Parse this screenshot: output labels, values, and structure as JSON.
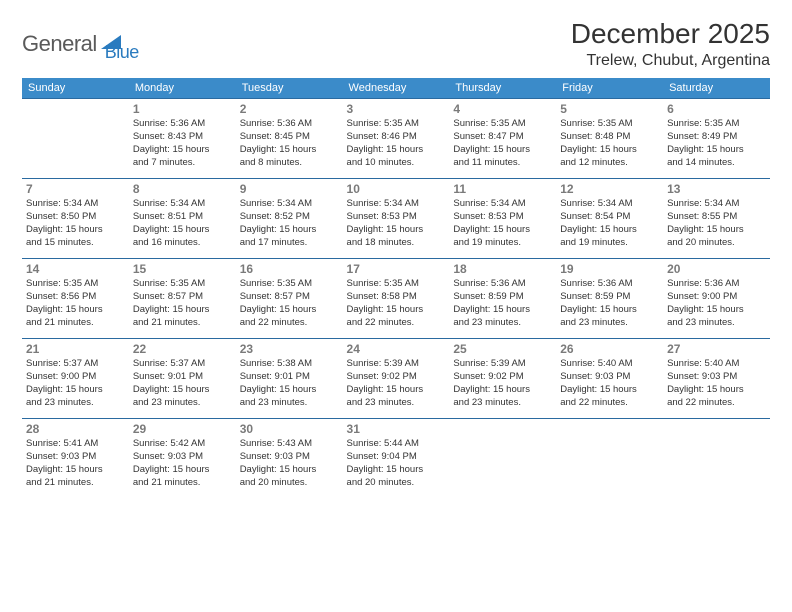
{
  "logo": {
    "text1": "General",
    "text2": "Blue"
  },
  "title": "December 2025",
  "location": "Trelew, Chubut, Argentina",
  "weekdays": [
    "Sunday",
    "Monday",
    "Tuesday",
    "Wednesday",
    "Thursday",
    "Friday",
    "Saturday"
  ],
  "colors": {
    "header_bg": "#3b8bc9",
    "border": "#2a6aa0",
    "logo_blue": "#2a7bbf"
  },
  "weeks": [
    [
      {
        "day": "",
        "sunrise": "",
        "sunset": "",
        "daylightA": "",
        "daylightB": ""
      },
      {
        "day": "1",
        "sunrise": "Sunrise: 5:36 AM",
        "sunset": "Sunset: 8:43 PM",
        "daylightA": "Daylight: 15 hours",
        "daylightB": "and 7 minutes."
      },
      {
        "day": "2",
        "sunrise": "Sunrise: 5:36 AM",
        "sunset": "Sunset: 8:45 PM",
        "daylightA": "Daylight: 15 hours",
        "daylightB": "and 8 minutes."
      },
      {
        "day": "3",
        "sunrise": "Sunrise: 5:35 AM",
        "sunset": "Sunset: 8:46 PM",
        "daylightA": "Daylight: 15 hours",
        "daylightB": "and 10 minutes."
      },
      {
        "day": "4",
        "sunrise": "Sunrise: 5:35 AM",
        "sunset": "Sunset: 8:47 PM",
        "daylightA": "Daylight: 15 hours",
        "daylightB": "and 11 minutes."
      },
      {
        "day": "5",
        "sunrise": "Sunrise: 5:35 AM",
        "sunset": "Sunset: 8:48 PM",
        "daylightA": "Daylight: 15 hours",
        "daylightB": "and 12 minutes."
      },
      {
        "day": "6",
        "sunrise": "Sunrise: 5:35 AM",
        "sunset": "Sunset: 8:49 PM",
        "daylightA": "Daylight: 15 hours",
        "daylightB": "and 14 minutes."
      }
    ],
    [
      {
        "day": "7",
        "sunrise": "Sunrise: 5:34 AM",
        "sunset": "Sunset: 8:50 PM",
        "daylightA": "Daylight: 15 hours",
        "daylightB": "and 15 minutes."
      },
      {
        "day": "8",
        "sunrise": "Sunrise: 5:34 AM",
        "sunset": "Sunset: 8:51 PM",
        "daylightA": "Daylight: 15 hours",
        "daylightB": "and 16 minutes."
      },
      {
        "day": "9",
        "sunrise": "Sunrise: 5:34 AM",
        "sunset": "Sunset: 8:52 PM",
        "daylightA": "Daylight: 15 hours",
        "daylightB": "and 17 minutes."
      },
      {
        "day": "10",
        "sunrise": "Sunrise: 5:34 AM",
        "sunset": "Sunset: 8:53 PM",
        "daylightA": "Daylight: 15 hours",
        "daylightB": "and 18 minutes."
      },
      {
        "day": "11",
        "sunrise": "Sunrise: 5:34 AM",
        "sunset": "Sunset: 8:53 PM",
        "daylightA": "Daylight: 15 hours",
        "daylightB": "and 19 minutes."
      },
      {
        "day": "12",
        "sunrise": "Sunrise: 5:34 AM",
        "sunset": "Sunset: 8:54 PM",
        "daylightA": "Daylight: 15 hours",
        "daylightB": "and 19 minutes."
      },
      {
        "day": "13",
        "sunrise": "Sunrise: 5:34 AM",
        "sunset": "Sunset: 8:55 PM",
        "daylightA": "Daylight: 15 hours",
        "daylightB": "and 20 minutes."
      }
    ],
    [
      {
        "day": "14",
        "sunrise": "Sunrise: 5:35 AM",
        "sunset": "Sunset: 8:56 PM",
        "daylightA": "Daylight: 15 hours",
        "daylightB": "and 21 minutes."
      },
      {
        "day": "15",
        "sunrise": "Sunrise: 5:35 AM",
        "sunset": "Sunset: 8:57 PM",
        "daylightA": "Daylight: 15 hours",
        "daylightB": "and 21 minutes."
      },
      {
        "day": "16",
        "sunrise": "Sunrise: 5:35 AM",
        "sunset": "Sunset: 8:57 PM",
        "daylightA": "Daylight: 15 hours",
        "daylightB": "and 22 minutes."
      },
      {
        "day": "17",
        "sunrise": "Sunrise: 5:35 AM",
        "sunset": "Sunset: 8:58 PM",
        "daylightA": "Daylight: 15 hours",
        "daylightB": "and 22 minutes."
      },
      {
        "day": "18",
        "sunrise": "Sunrise: 5:36 AM",
        "sunset": "Sunset: 8:59 PM",
        "daylightA": "Daylight: 15 hours",
        "daylightB": "and 23 minutes."
      },
      {
        "day": "19",
        "sunrise": "Sunrise: 5:36 AM",
        "sunset": "Sunset: 8:59 PM",
        "daylightA": "Daylight: 15 hours",
        "daylightB": "and 23 minutes."
      },
      {
        "day": "20",
        "sunrise": "Sunrise: 5:36 AM",
        "sunset": "Sunset: 9:00 PM",
        "daylightA": "Daylight: 15 hours",
        "daylightB": "and 23 minutes."
      }
    ],
    [
      {
        "day": "21",
        "sunrise": "Sunrise: 5:37 AM",
        "sunset": "Sunset: 9:00 PM",
        "daylightA": "Daylight: 15 hours",
        "daylightB": "and 23 minutes."
      },
      {
        "day": "22",
        "sunrise": "Sunrise: 5:37 AM",
        "sunset": "Sunset: 9:01 PM",
        "daylightA": "Daylight: 15 hours",
        "daylightB": "and 23 minutes."
      },
      {
        "day": "23",
        "sunrise": "Sunrise: 5:38 AM",
        "sunset": "Sunset: 9:01 PM",
        "daylightA": "Daylight: 15 hours",
        "daylightB": "and 23 minutes."
      },
      {
        "day": "24",
        "sunrise": "Sunrise: 5:39 AM",
        "sunset": "Sunset: 9:02 PM",
        "daylightA": "Daylight: 15 hours",
        "daylightB": "and 23 minutes."
      },
      {
        "day": "25",
        "sunrise": "Sunrise: 5:39 AM",
        "sunset": "Sunset: 9:02 PM",
        "daylightA": "Daylight: 15 hours",
        "daylightB": "and 23 minutes."
      },
      {
        "day": "26",
        "sunrise": "Sunrise: 5:40 AM",
        "sunset": "Sunset: 9:03 PM",
        "daylightA": "Daylight: 15 hours",
        "daylightB": "and 22 minutes."
      },
      {
        "day": "27",
        "sunrise": "Sunrise: 5:40 AM",
        "sunset": "Sunset: 9:03 PM",
        "daylightA": "Daylight: 15 hours",
        "daylightB": "and 22 minutes."
      }
    ],
    [
      {
        "day": "28",
        "sunrise": "Sunrise: 5:41 AM",
        "sunset": "Sunset: 9:03 PM",
        "daylightA": "Daylight: 15 hours",
        "daylightB": "and 21 minutes."
      },
      {
        "day": "29",
        "sunrise": "Sunrise: 5:42 AM",
        "sunset": "Sunset: 9:03 PM",
        "daylightA": "Daylight: 15 hours",
        "daylightB": "and 21 minutes."
      },
      {
        "day": "30",
        "sunrise": "Sunrise: 5:43 AM",
        "sunset": "Sunset: 9:03 PM",
        "daylightA": "Daylight: 15 hours",
        "daylightB": "and 20 minutes."
      },
      {
        "day": "31",
        "sunrise": "Sunrise: 5:44 AM",
        "sunset": "Sunset: 9:04 PM",
        "daylightA": "Daylight: 15 hours",
        "daylightB": "and 20 minutes."
      },
      {
        "day": "",
        "sunrise": "",
        "sunset": "",
        "daylightA": "",
        "daylightB": ""
      },
      {
        "day": "",
        "sunrise": "",
        "sunset": "",
        "daylightA": "",
        "daylightB": ""
      },
      {
        "day": "",
        "sunrise": "",
        "sunset": "",
        "daylightA": "",
        "daylightB": ""
      }
    ]
  ]
}
